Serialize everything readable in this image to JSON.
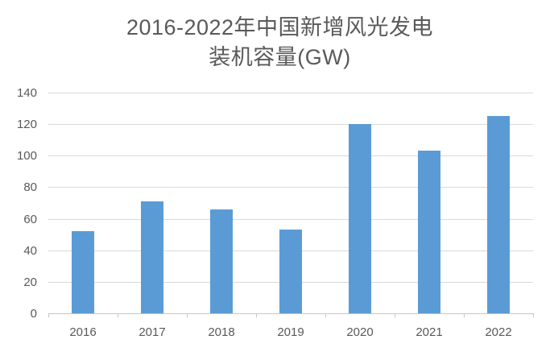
{
  "title": {
    "line1": "2016-2022年中国新增风光发电",
    "line2": "装机容量(GW)",
    "full": "2016-2022年中国新增风光发电装机容量(GW)"
  },
  "chart_data": {
    "type": "bar",
    "title": "2016-2022年中国新增风光发电装机容量(GW)",
    "categories": [
      "2016",
      "2017",
      "2018",
      "2019",
      "2020",
      "2021",
      "2022"
    ],
    "values": [
      52,
      71,
      66,
      53,
      120,
      103,
      125
    ],
    "unit": "GW",
    "xlabel": "",
    "ylabel": "",
    "ylim": [
      0,
      140
    ],
    "yticks": [
      0,
      20,
      40,
      60,
      80,
      100,
      120,
      140
    ],
    "grid": true,
    "legend": "none",
    "colors": {
      "bar": "#5b9bd5",
      "gridline": "#d9d9d9",
      "axis_line": "#c6c6c6",
      "text": "#595959"
    }
  }
}
